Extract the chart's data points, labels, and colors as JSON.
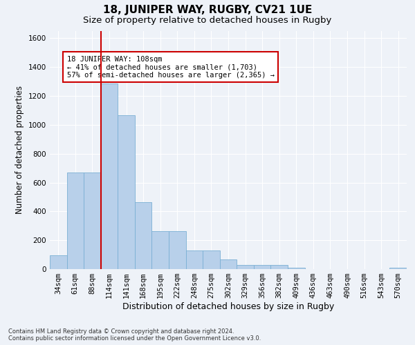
{
  "title": "18, JUNIPER WAY, RUGBY, CV21 1UE",
  "subtitle": "Size of property relative to detached houses in Rugby",
  "xlabel": "Distribution of detached houses by size in Rugby",
  "ylabel": "Number of detached properties",
  "footer_line1": "Contains HM Land Registry data © Crown copyright and database right 2024.",
  "footer_line2": "Contains public sector information licensed under the Open Government Licence v3.0.",
  "categories": [
    "34sqm",
    "61sqm",
    "88sqm",
    "114sqm",
    "141sqm",
    "168sqm",
    "195sqm",
    "222sqm",
    "248sqm",
    "275sqm",
    "302sqm",
    "329sqm",
    "356sqm",
    "382sqm",
    "409sqm",
    "436sqm",
    "463sqm",
    "490sqm",
    "516sqm",
    "543sqm",
    "570sqm"
  ],
  "values": [
    97,
    670,
    670,
    1285,
    1068,
    465,
    265,
    265,
    130,
    130,
    68,
    30,
    30,
    30,
    10,
    0,
    0,
    0,
    0,
    0,
    10
  ],
  "bar_color": "#b8d0ea",
  "bar_edge_color": "#7aafd4",
  "vline_x_index": 3,
  "vline_color": "#cc0000",
  "annotation_text": "18 JUNIPER WAY: 108sqm\n← 41% of detached houses are smaller (1,703)\n57% of semi-detached houses are larger (2,365) →",
  "annotation_box_color": "#ffffff",
  "annotation_box_edge_color": "#cc0000",
  "ylim": [
    0,
    1650
  ],
  "yticks": [
    0,
    200,
    400,
    600,
    800,
    1000,
    1200,
    1400,
    1600
  ],
  "background_color": "#eef2f8",
  "grid_color": "#ffffff",
  "title_fontsize": 11,
  "subtitle_fontsize": 9.5,
  "ylabel_fontsize": 8.5,
  "xlabel_fontsize": 9,
  "tick_fontsize": 7.5,
  "footer_fontsize": 6,
  "annotation_fontsize": 7.5
}
